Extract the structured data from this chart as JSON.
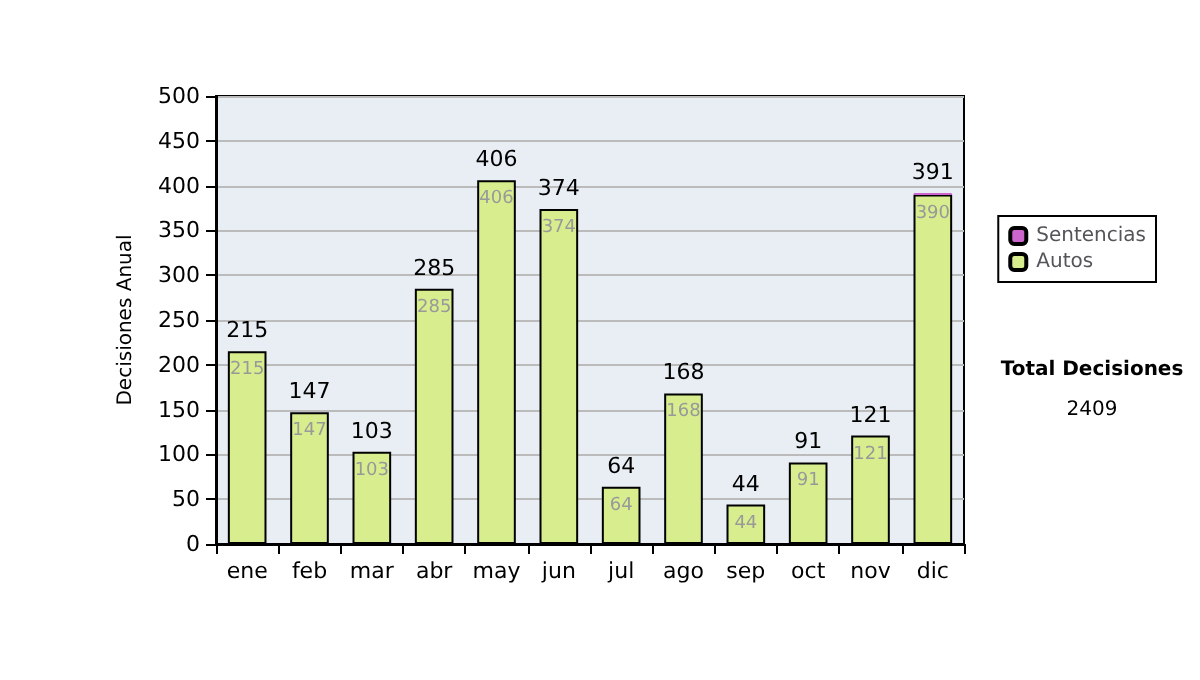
{
  "chart_data": {
    "type": "bar",
    "stacked": true,
    "ylabel": "Decisiones Anual",
    "categories": [
      "ene",
      "feb",
      "mar",
      "abr",
      "may",
      "jun",
      "jul",
      "ago",
      "sep",
      "oct",
      "nov",
      "dic"
    ],
    "series": [
      {
        "name": "Autos",
        "color": "#d8ee8e",
        "values": [
          215,
          147,
          103,
          285,
          406,
          374,
          64,
          168,
          44,
          91,
          121,
          390
        ],
        "value_labels": [
          "215",
          "147",
          "103",
          "285",
          "406",
          "374",
          "64",
          "168",
          "44",
          "91",
          "121",
          "390"
        ]
      },
      {
        "name": "Sentencias",
        "color": "#cc66cc",
        "values": [
          0,
          0,
          0,
          0,
          0,
          0,
          0,
          0,
          0,
          0,
          0,
          1
        ]
      }
    ],
    "totals": [
      "215",
      "147",
      "103",
      "285",
      "406",
      "374",
      "64",
      "168",
      "44",
      "91",
      "121",
      "391"
    ],
    "ylim": [
      0,
      500
    ],
    "yticks": [
      0,
      50,
      100,
      150,
      200,
      250,
      300,
      350,
      400,
      450,
      500
    ],
    "grid": "y",
    "legend": "right",
    "annotations": [
      "Total Decisiones",
      "2409"
    ]
  }
}
